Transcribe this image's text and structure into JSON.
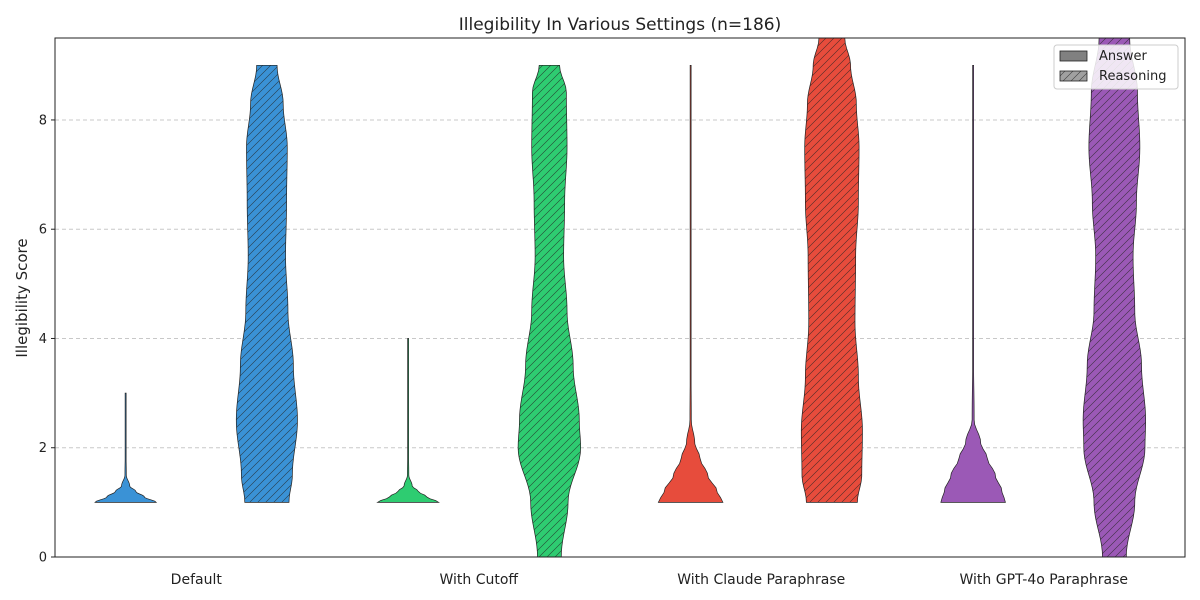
{
  "chart_data": {
    "type": "violin",
    "title": "Illegibility In Various Settings (n=186)",
    "xlabel": "",
    "ylabel": "Illegibility Score",
    "ylim": [
      0,
      9.5
    ],
    "yticks": [
      0,
      2,
      4,
      6,
      8
    ],
    "grid": true,
    "legend_position": "top-right",
    "legend": [
      {
        "label": "Answer",
        "hatch": false
      },
      {
        "label": "Reasoning",
        "hatch": true
      }
    ],
    "categories": [
      "Default",
      "With Cutoff",
      "With Claude Paraphrase",
      "With GPT-4o Paraphrase"
    ],
    "colors": [
      "#3a92d6",
      "#2ecc71",
      "#e74c3c",
      "#9b59b6"
    ],
    "series": [
      {
        "name": "Answer",
        "violins": [
          {
            "min": 1,
            "max": 3,
            "profile": [
              [
                1,
                0.9
              ],
              [
                1.1,
                0.55
              ],
              [
                1.2,
                0.3
              ],
              [
                1.3,
                0.12
              ],
              [
                1.5,
                0.02
              ],
              [
                2,
                0.01
              ],
              [
                3,
                0.0
              ]
            ]
          },
          {
            "min": 1,
            "max": 4,
            "profile": [
              [
                1,
                0.9
              ],
              [
                1.1,
                0.55
              ],
              [
                1.2,
                0.3
              ],
              [
                1.3,
                0.12
              ],
              [
                1.5,
                0.02
              ],
              [
                2,
                0.01
              ],
              [
                4,
                0.0
              ]
            ]
          },
          {
            "min": 1,
            "max": 9,
            "profile": [
              [
                1,
                0.95
              ],
              [
                1.2,
                0.78
              ],
              [
                1.5,
                0.5
              ],
              [
                1.8,
                0.28
              ],
              [
                2.1,
                0.12
              ],
              [
                2.5,
                0.02
              ],
              [
                4,
                0.005
              ],
              [
                9,
                0.0
              ]
            ]
          },
          {
            "min": 1,
            "max": 9,
            "profile": [
              [
                1,
                0.95
              ],
              [
                1.2,
                0.85
              ],
              [
                1.5,
                0.65
              ],
              [
                1.8,
                0.42
              ],
              [
                2.1,
                0.22
              ],
              [
                2.5,
                0.03
              ],
              [
                4,
                0.005
              ],
              [
                9,
                0.0
              ]
            ]
          }
        ]
      },
      {
        "name": "Reasoning",
        "violins": [
          {
            "min": 1,
            "max": 9,
            "profile": [
              [
                1,
                0.65
              ],
              [
                1.5,
                0.75
              ],
              [
                2.5,
                0.9
              ],
              [
                3.5,
                0.78
              ],
              [
                4.5,
                0.62
              ],
              [
                5.5,
                0.55
              ],
              [
                6.5,
                0.58
              ],
              [
                7.5,
                0.6
              ],
              [
                8.3,
                0.48
              ],
              [
                9,
                0.3
              ]
            ]
          },
          {
            "min": 0,
            "max": 9,
            "profile": [
              [
                0,
                0.35
              ],
              [
                1,
                0.55
              ],
              [
                2,
                0.92
              ],
              [
                2.5,
                0.88
              ],
              [
                3.5,
                0.7
              ],
              [
                4.5,
                0.52
              ],
              [
                5.5,
                0.42
              ],
              [
                6.5,
                0.45
              ],
              [
                7.5,
                0.52
              ],
              [
                8.5,
                0.5
              ],
              [
                9,
                0.3
              ]
            ]
          },
          {
            "min": 1,
            "max": 9.5,
            "profile": [
              [
                1,
                0.75
              ],
              [
                1.5,
                0.88
              ],
              [
                2.3,
                0.9
              ],
              [
                3.3,
                0.78
              ],
              [
                4.3,
                0.68
              ],
              [
                5.5,
                0.7
              ],
              [
                6.5,
                0.78
              ],
              [
                7.5,
                0.8
              ],
              [
                8.3,
                0.72
              ],
              [
                9,
                0.55
              ],
              [
                9.5,
                0.38
              ]
            ]
          },
          {
            "min": 0,
            "max": 9.5,
            "profile": [
              [
                0,
                0.35
              ],
              [
                1,
                0.6
              ],
              [
                2,
                0.9
              ],
              [
                2.5,
                0.92
              ],
              [
                3.5,
                0.8
              ],
              [
                4.5,
                0.6
              ],
              [
                5.5,
                0.55
              ],
              [
                6.5,
                0.65
              ],
              [
                7.5,
                0.75
              ],
              [
                8.5,
                0.68
              ],
              [
                9.5,
                0.45
              ]
            ]
          }
        ]
      }
    ]
  }
}
